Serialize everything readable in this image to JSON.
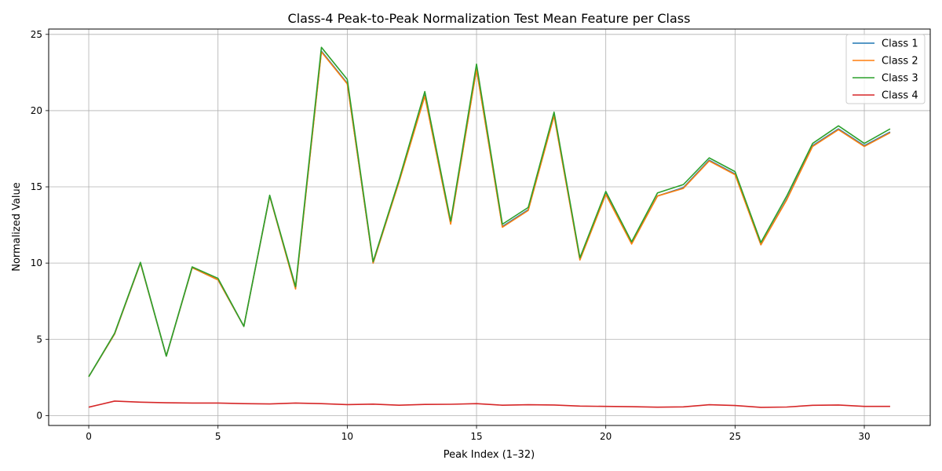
{
  "chart_data": {
    "type": "line",
    "title": "Class-4 Peak-to-Peak Normalization Test Mean Feature per Class",
    "xlabel": "Peak Index (1–32)",
    "ylabel": "Normalized Value",
    "xlim": [
      -1.55,
      32.55
    ],
    "ylim": [
      -0.65,
      25.35
    ],
    "xticks": [
      0,
      5,
      10,
      15,
      20,
      25,
      30
    ],
    "yticks": [
      0,
      5,
      10,
      15,
      20,
      25
    ],
    "grid": true,
    "legend_position": "top-right",
    "x": [
      0,
      1,
      2,
      3,
      4,
      5,
      6,
      7,
      8,
      9,
      10,
      11,
      12,
      13,
      14,
      15,
      16,
      17,
      18,
      19,
      20,
      21,
      22,
      23,
      24,
      25,
      26,
      27,
      28,
      29,
      30,
      31
    ],
    "series": [
      {
        "name": "Class 1",
        "color": "#1f77b4",
        "values": [
          2.55,
          5.35,
          10.0,
          3.9,
          9.7,
          8.9,
          5.85,
          14.4,
          8.35,
          23.9,
          21.8,
          10.0,
          15.35,
          21.0,
          12.6,
          22.75,
          12.4,
          13.5,
          19.7,
          10.25,
          14.55,
          11.3,
          14.4,
          14.95,
          16.75,
          15.85,
          11.2,
          14.2,
          17.7,
          18.8,
          17.7,
          18.6
        ]
      },
      {
        "name": "Class 2",
        "color": "#ff7f0e",
        "values": [
          2.55,
          5.35,
          10.0,
          3.9,
          9.7,
          8.9,
          5.85,
          14.4,
          8.3,
          23.85,
          21.75,
          10.0,
          15.3,
          20.95,
          12.55,
          22.7,
          12.35,
          13.45,
          19.65,
          10.2,
          14.5,
          11.25,
          14.4,
          14.9,
          16.7,
          15.8,
          11.2,
          14.15,
          17.65,
          18.75,
          17.65,
          18.55
        ]
      },
      {
        "name": "Class 3",
        "color": "#2ca02c",
        "values": [
          2.55,
          5.4,
          10.05,
          3.9,
          9.75,
          9.0,
          5.85,
          14.45,
          8.45,
          24.15,
          22.05,
          10.1,
          15.45,
          21.25,
          12.75,
          23.05,
          12.55,
          13.65,
          19.9,
          10.35,
          14.7,
          11.4,
          14.6,
          15.15,
          16.9,
          16.0,
          11.35,
          14.4,
          17.85,
          19.0,
          17.85,
          18.8
        ]
      },
      {
        "name": "Class 4",
        "color": "#d62728",
        "values": [
          0.55,
          0.95,
          0.88,
          0.84,
          0.82,
          0.82,
          0.78,
          0.76,
          0.82,
          0.78,
          0.72,
          0.75,
          0.68,
          0.73,
          0.74,
          0.78,
          0.68,
          0.71,
          0.69,
          0.62,
          0.6,
          0.58,
          0.55,
          0.57,
          0.71,
          0.66,
          0.54,
          0.56,
          0.67,
          0.69,
          0.6,
          0.6
        ]
      }
    ]
  }
}
